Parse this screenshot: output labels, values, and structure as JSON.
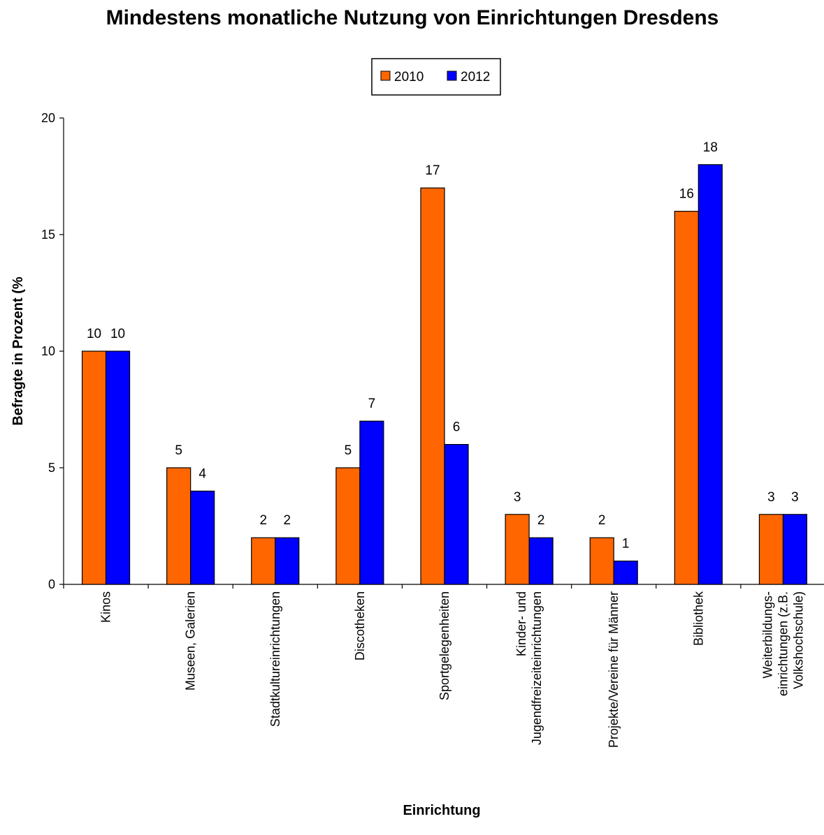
{
  "chart_data": {
    "type": "bar",
    "title": "Mindestens monatliche Nutzung von Einrichtungen Dresdens",
    "xlabel": "Einrichtung",
    "ylabel": "Befragte in Prozent (%",
    "ylim": [
      0,
      20
    ],
    "yticks": [
      0,
      5,
      10,
      15,
      20
    ],
    "grid": false,
    "legend_position": "top-center",
    "categories": [
      [
        "Kinos"
      ],
      [
        "Museen, Galerien"
      ],
      [
        "Stadtkultureinrichtungen"
      ],
      [
        "Discotheken"
      ],
      [
        "Sportgelegenheiten"
      ],
      [
        "Kinder- und",
        "Jugendfreizeiteinrichtungen"
      ],
      [
        "Projekte/Vereine für Männer"
      ],
      [
        "Bibliothek"
      ],
      [
        "Weiterbildungs-",
        "einrichtungen (z.B.",
        "Volkshochschule)"
      ]
    ],
    "series": [
      {
        "name": "2010",
        "color": "#FF6600",
        "values": [
          10,
          5,
          2,
          5,
          17,
          3,
          2,
          16,
          3
        ]
      },
      {
        "name": "2012",
        "color": "#0000FF",
        "values": [
          10,
          4,
          2,
          7,
          6,
          2,
          1,
          18,
          3
        ]
      }
    ]
  }
}
